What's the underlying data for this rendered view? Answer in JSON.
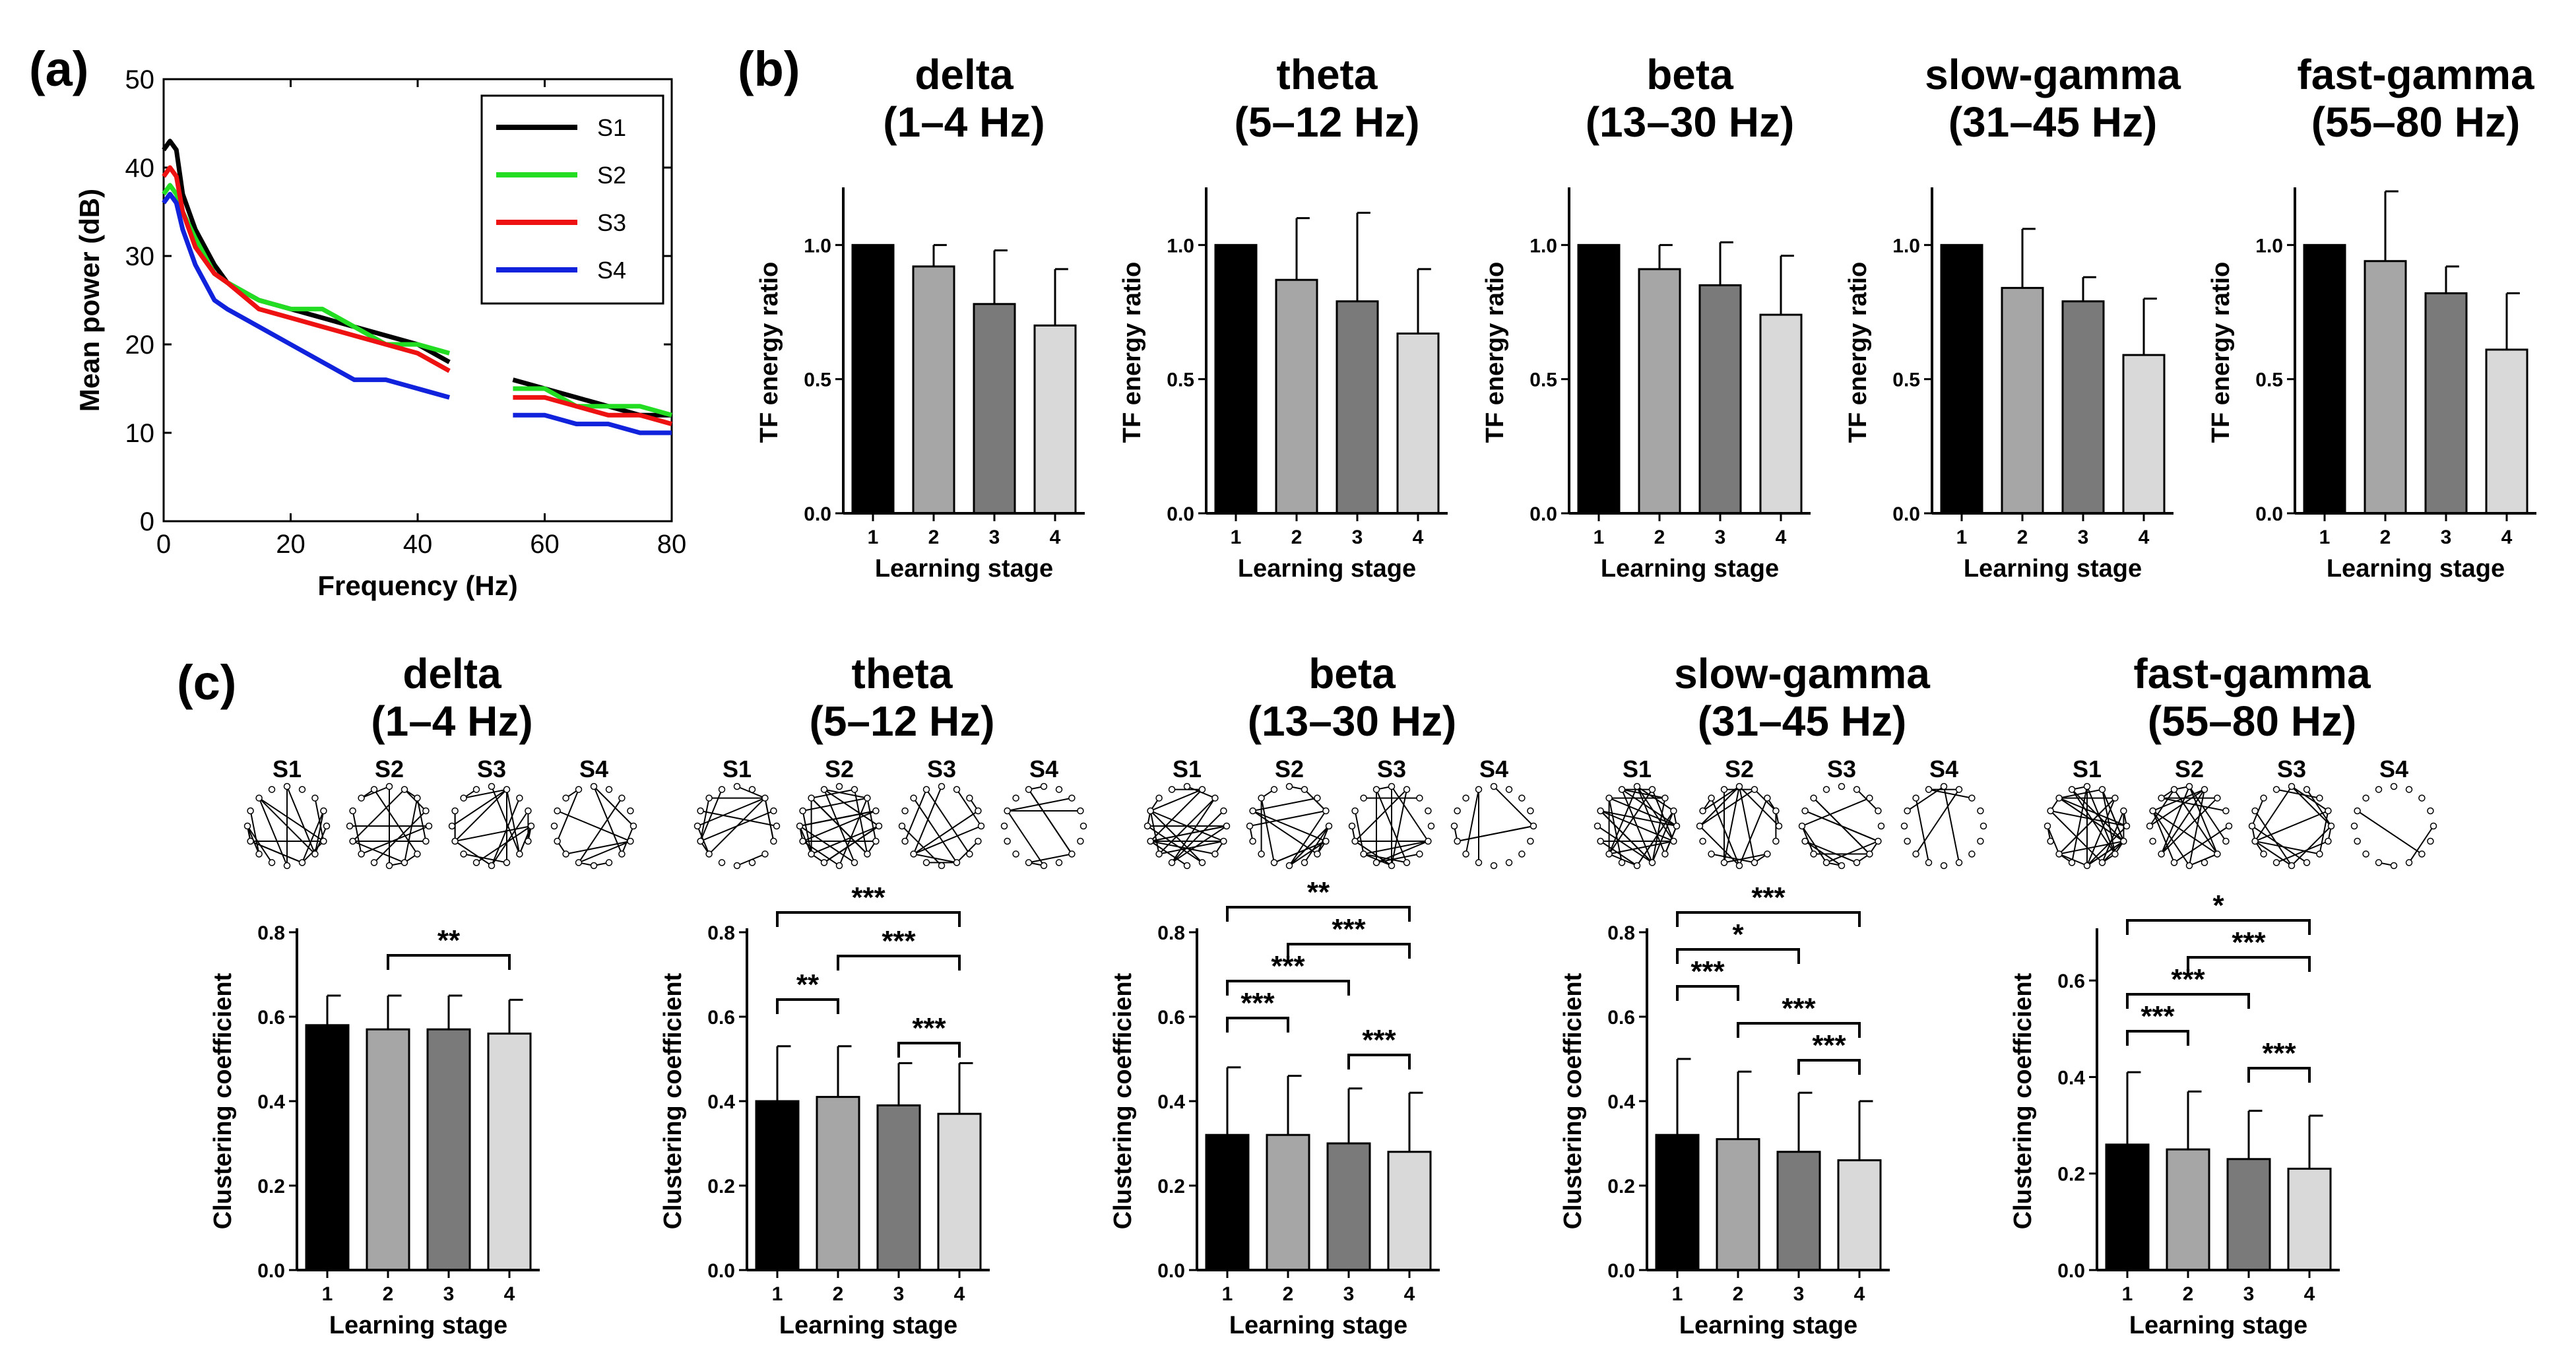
{
  "panel_labels": {
    "a": "(a)",
    "b": "(b)",
    "c": "(c)"
  },
  "colors": {
    "stage_fills": [
      "#000000",
      "#a6a6a6",
      "#7a7a7a",
      "#d9d9d9"
    ],
    "S1": "#000000",
    "S2": "#22dd22",
    "S3": "#ee1111",
    "S4": "#1122dd"
  },
  "bands": [
    {
      "name": "delta",
      "range": "(1–4 Hz)"
    },
    {
      "name": "theta",
      "range": "(5–12 Hz)"
    },
    {
      "name": "beta",
      "range": "(13–30 Hz)"
    },
    {
      "name": "slow-gamma",
      "range": "(31–45 Hz)"
    },
    {
      "name": "fast-gamma",
      "range": "(55–80 Hz)"
    }
  ],
  "network_labels": [
    "S1",
    "S2",
    "S3",
    "S4"
  ],
  "chart_data": [
    {
      "id": "a",
      "type": "line",
      "xlabel": "Frequency (Hz)",
      "ylabel": "Mean power (dB)",
      "xlim": [
        0,
        80
      ],
      "ylim": [
        0,
        50
      ],
      "xticks": [
        0,
        20,
        40,
        60,
        80
      ],
      "yticks": [
        0,
        10,
        20,
        30,
        40,
        50
      ],
      "gap": [
        45,
        55
      ],
      "legend": [
        "S1",
        "S2",
        "S3",
        "S4"
      ],
      "legend_position": "top-right",
      "series": [
        {
          "name": "S1",
          "x": [
            0,
            1,
            2,
            3,
            5,
            8,
            10,
            15,
            20,
            25,
            30,
            35,
            40,
            45,
            55,
            60,
            65,
            70,
            75,
            80
          ],
          "y": [
            42,
            43,
            42,
            37,
            33,
            29,
            27,
            25,
            24,
            23,
            22,
            21,
            20,
            18,
            16,
            15,
            14,
            13,
            12,
            12
          ]
        },
        {
          "name": "S2",
          "x": [
            0,
            1,
            2,
            3,
            5,
            8,
            10,
            15,
            20,
            25,
            30,
            35,
            40,
            45,
            55,
            60,
            65,
            70,
            75,
            80
          ],
          "y": [
            37,
            38,
            37,
            35,
            32,
            28,
            27,
            25,
            24,
            24,
            22,
            20,
            20,
            19,
            15,
            15,
            13,
            13,
            13,
            12
          ]
        },
        {
          "name": "S3",
          "x": [
            0,
            1,
            2,
            3,
            5,
            8,
            10,
            15,
            20,
            25,
            30,
            35,
            40,
            45,
            55,
            60,
            65,
            70,
            75,
            80
          ],
          "y": [
            39,
            40,
            39,
            35,
            31,
            28,
            27,
            24,
            23,
            22,
            21,
            20,
            19,
            17,
            14,
            14,
            13,
            12,
            12,
            11
          ]
        },
        {
          "name": "S4",
          "x": [
            0,
            1,
            2,
            3,
            5,
            8,
            10,
            15,
            20,
            25,
            30,
            35,
            40,
            45,
            55,
            60,
            65,
            70,
            75,
            80
          ],
          "y": [
            36,
            37,
            36,
            33,
            29,
            25,
            24,
            22,
            20,
            18,
            16,
            16,
            15,
            14,
            12,
            12,
            11,
            11,
            10,
            10
          ]
        }
      ]
    },
    {
      "id": "b",
      "type": "bar",
      "xlabel": "Learning stage",
      "ylabel": "TF energy ratio",
      "categories": [
        "1",
        "2",
        "3",
        "4"
      ],
      "charts": [
        {
          "band": "delta",
          "ylim": [
            0,
            1.2
          ],
          "yticks": [
            0.0,
            0.5,
            1.0
          ],
          "values": [
            1.0,
            0.92,
            0.78,
            0.7
          ],
          "errors": [
            0,
            0.08,
            0.2,
            0.21
          ]
        },
        {
          "band": "theta",
          "ylim": [
            0,
            1.2
          ],
          "yticks": [
            0.0,
            0.5,
            1.0
          ],
          "values": [
            1.0,
            0.87,
            0.79,
            0.67
          ],
          "errors": [
            0,
            0.23,
            0.33,
            0.24
          ]
        },
        {
          "band": "beta",
          "ylim": [
            0,
            1.2
          ],
          "yticks": [
            0.0,
            0.5,
            1.0
          ],
          "values": [
            1.0,
            0.91,
            0.85,
            0.74
          ],
          "errors": [
            0,
            0.09,
            0.16,
            0.22
          ]
        },
        {
          "band": "slow-gamma",
          "ylim": [
            0,
            1.2
          ],
          "yticks": [
            0.0,
            0.5,
            1.0
          ],
          "values": [
            1.0,
            0.84,
            0.79,
            0.59
          ],
          "errors": [
            0,
            0.22,
            0.09,
            0.21
          ]
        },
        {
          "band": "fast-gamma",
          "ylim": [
            0,
            1.2
          ],
          "yticks": [
            0.0,
            0.5,
            1.0
          ],
          "values": [
            1.0,
            0.94,
            0.82,
            0.61
          ],
          "errors": [
            0,
            0.26,
            0.1,
            0.21
          ]
        }
      ]
    },
    {
      "id": "c",
      "type": "bar",
      "xlabel": "Learning stage",
      "ylabel": "Clustering coefficient",
      "categories": [
        "1",
        "2",
        "3",
        "4"
      ],
      "charts": [
        {
          "band": "delta",
          "ylim": [
            0,
            0.8
          ],
          "yticks": [
            0.0,
            0.2,
            0.4,
            0.6,
            0.8
          ],
          "values": [
            0.58,
            0.57,
            0.57,
            0.56
          ],
          "errors": [
            0.07,
            0.08,
            0.08,
            0.08
          ],
          "significance": [
            {
              "from": 2,
              "to": 4,
              "label": "**"
            }
          ]
        },
        {
          "band": "theta",
          "ylim": [
            0,
            0.8
          ],
          "yticks": [
            0.0,
            0.2,
            0.4,
            0.6,
            0.8
          ],
          "values": [
            0.4,
            0.41,
            0.39,
            0.37
          ],
          "errors": [
            0.13,
            0.12,
            0.1,
            0.12
          ],
          "significance": [
            {
              "from": 1,
              "to": 4,
              "label": "***"
            },
            {
              "from": 2,
              "to": 4,
              "label": "***"
            },
            {
              "from": 1,
              "to": 2,
              "label": "**"
            },
            {
              "from": 3,
              "to": 4,
              "label": "***"
            }
          ]
        },
        {
          "band": "beta",
          "ylim": [
            0,
            0.8
          ],
          "yticks": [
            0.0,
            0.2,
            0.4,
            0.6,
            0.8
          ],
          "values": [
            0.32,
            0.32,
            0.3,
            0.28
          ],
          "errors": [
            0.16,
            0.14,
            0.13,
            0.14
          ],
          "significance": [
            {
              "from": 1,
              "to": 4,
              "label": "**"
            },
            {
              "from": 2,
              "to": 4,
              "label": "***"
            },
            {
              "from": 1,
              "to": 3,
              "label": "***"
            },
            {
              "from": 1,
              "to": 2,
              "label": "***"
            },
            {
              "from": 3,
              "to": 4,
              "label": "***"
            }
          ]
        },
        {
          "band": "slow-gamma",
          "ylim": [
            0,
            0.8
          ],
          "yticks": [
            0.0,
            0.2,
            0.4,
            0.6,
            0.8
          ],
          "values": [
            0.32,
            0.31,
            0.28,
            0.26
          ],
          "errors": [
            0.18,
            0.16,
            0.14,
            0.14
          ],
          "significance": [
            {
              "from": 1,
              "to": 4,
              "label": "***"
            },
            {
              "from": 1,
              "to": 3,
              "label": "*"
            },
            {
              "from": 1,
              "to": 2,
              "label": "***"
            },
            {
              "from": 2,
              "to": 4,
              "label": "***"
            },
            {
              "from": 3,
              "to": 4,
              "label": "***"
            }
          ]
        },
        {
          "band": "fast-gamma",
          "ylim": [
            0,
            0.7
          ],
          "yticks": [
            0.0,
            0.2,
            0.4,
            0.6
          ],
          "values": [
            0.26,
            0.25,
            0.23,
            0.21
          ],
          "errors": [
            0.15,
            0.12,
            0.1,
            0.11
          ],
          "significance": [
            {
              "from": 1,
              "to": 4,
              "label": "*"
            },
            {
              "from": 2,
              "to": 4,
              "label": "***"
            },
            {
              "from": 1,
              "to": 3,
              "label": "***"
            },
            {
              "from": 1,
              "to": 2,
              "label": "***"
            },
            {
              "from": 3,
              "to": 4,
              "label": "***"
            }
          ]
        }
      ]
    }
  ]
}
